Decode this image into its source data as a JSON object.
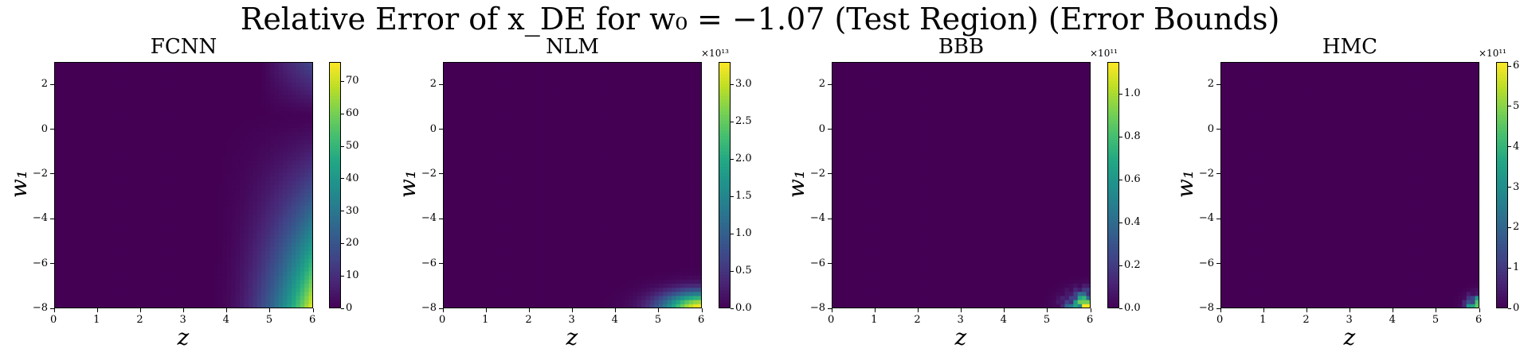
{
  "figure": {
    "title": "Relative Error of x_DE for w₀ = −1.07 (Test Region) (Error Bounds)"
  },
  "chart_data": [
    {
      "type": "heatmap",
      "title": "FCNN",
      "xlabel": "z",
      "ylabel": "w₁",
      "xlim": [
        0,
        6
      ],
      "ylim": [
        -8,
        3
      ],
      "x_ticks": [
        "0",
        "1",
        "2",
        "3",
        "4",
        "5",
        "6"
      ],
      "y_ticks": [
        "2",
        "0",
        "−2",
        "−4",
        "−6",
        "−8"
      ],
      "colorbar": {
        "min": 0,
        "max": 76,
        "ticks": [
          "0",
          "10",
          "20",
          "30",
          "40",
          "50",
          "60",
          "70"
        ],
        "multiplier": ""
      },
      "description_values": {
        "max_region": "z≈6, w1≈-8",
        "max_value": 76
      }
    },
    {
      "type": "heatmap",
      "title": "NLM",
      "xlabel": "z",
      "ylabel": "w₁",
      "xlim": [
        0,
        6
      ],
      "ylim": [
        -8,
        3
      ],
      "x_ticks": [
        "0",
        "1",
        "2",
        "3",
        "4",
        "5",
        "6"
      ],
      "y_ticks": [
        "2",
        "0",
        "−2",
        "−4",
        "−6",
        "−8"
      ],
      "colorbar": {
        "min": 0,
        "max": 3.3,
        "ticks": [
          "0.0",
          "0.5",
          "1.0",
          "1.5",
          "2.0",
          "2.5",
          "3.0"
        ],
        "multiplier": "×10¹³"
      },
      "description_values": {
        "max_region": "z≈6, w1≈-8",
        "max_value": 3.3
      }
    },
    {
      "type": "heatmap",
      "title": "BBB",
      "xlabel": "z",
      "ylabel": "w₁",
      "xlim": [
        0,
        6
      ],
      "ylim": [
        -8,
        3
      ],
      "x_ticks": [
        "0",
        "1",
        "2",
        "3",
        "4",
        "5",
        "6"
      ],
      "y_ticks": [
        "2",
        "0",
        "−2",
        "−4",
        "−6",
        "−8"
      ],
      "colorbar": {
        "min": 0,
        "max": 1.15,
        "ticks": [
          "0.0",
          "0.2",
          "0.4",
          "0.6",
          "0.8",
          "1.0"
        ],
        "multiplier": "×10¹¹"
      },
      "description_values": {
        "max_region": "z≈6, w1≈-8",
        "max_value": 1.15
      }
    },
    {
      "type": "heatmap",
      "title": "HMC",
      "xlabel": "z",
      "ylabel": "w₁",
      "xlim": [
        0,
        6
      ],
      "ylim": [
        -8,
        3
      ],
      "x_ticks": [
        "0",
        "1",
        "2",
        "3",
        "4",
        "5",
        "6"
      ],
      "y_ticks": [
        "2",
        "0",
        "−2",
        "−4",
        "−6",
        "−8"
      ],
      "colorbar": {
        "min": 0,
        "max": 6.1,
        "ticks": [
          "0",
          "1",
          "2",
          "3",
          "4",
          "5",
          "6"
        ],
        "multiplier": "×10¹¹"
      },
      "description_values": {
        "max_region": "z≈6, w1≈-8",
        "max_value": 6.1
      }
    }
  ]
}
